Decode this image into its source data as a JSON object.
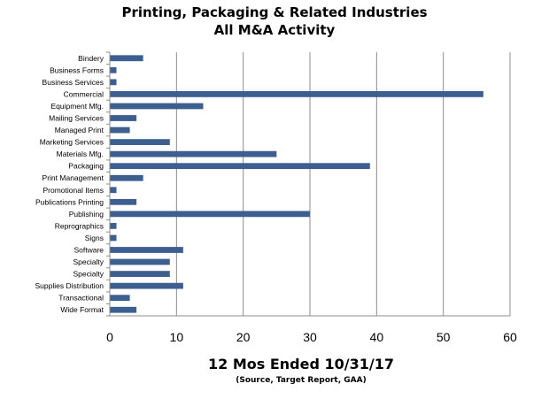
{
  "chart_data": {
    "type": "bar",
    "orientation": "horizontal",
    "title": [
      "Printing, Packaging & Related Industries",
      "All M&A Activity"
    ],
    "xlabel": "12 Mos Ended 10/31/17",
    "note": "(Source, Target Report, GAA)",
    "ylabel": "",
    "xlim": [
      0,
      60
    ],
    "xticks": [
      0,
      10,
      20,
      30,
      40,
      50,
      60
    ],
    "grid": "vertical",
    "bar_color": "#3d5f8f",
    "categories": [
      "Bindery",
      "Business Forms",
      "Business Services",
      "Commercial",
      "Equipment Mfg.",
      "Mailing Services",
      "Managed Print",
      "Marketing Services",
      "Materials Mfg.",
      "Packaging",
      "Print Management",
      "Promotional Items",
      "Publications Printing",
      "Publishing",
      "Reprographics",
      "Signs",
      "Software",
      "Specialty",
      "Specialty",
      "Supplies Distribution",
      "Transactional",
      "Wide Format"
    ],
    "values": [
      5,
      1,
      1,
      56,
      14,
      4,
      3,
      9,
      25,
      39,
      5,
      1,
      4,
      30,
      1,
      1,
      11,
      9,
      9,
      11,
      3,
      4
    ]
  }
}
